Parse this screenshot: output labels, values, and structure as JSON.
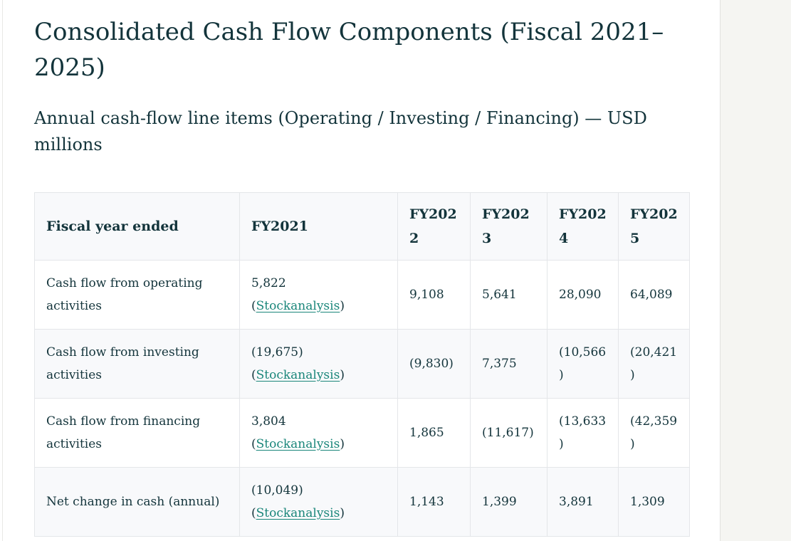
{
  "page": {
    "title": "Consolidated Cash Flow Components (Fiscal 2021–2025)",
    "subtitle": "Annual cash-flow line items (Operating / Investing / Financing) — USD millions"
  },
  "colors": {
    "text": "#13343b",
    "link_teal": "#1a867a",
    "table_border": "#e4e6e9",
    "stripe_bg": "#f8f9fb",
    "gutter_bg": "#f5f5f2"
  },
  "table": {
    "paren_open": "(",
    "paren_close": ")",
    "columns": [
      "Fiscal year ended",
      "FY2021",
      "FY2022",
      "FY2023",
      "FY2024",
      "FY2025"
    ],
    "rows": [
      {
        "label": "Cash flow from operating activities",
        "fy2021": {
          "value": "5,822",
          "source": "Stockanalysis"
        },
        "values": [
          "9,108",
          "5,641",
          "28,090",
          "64,089"
        ]
      },
      {
        "label": "Cash flow from investing activities",
        "fy2021": {
          "value": "(19,675)",
          "source": "Stockanalysis"
        },
        "values": [
          "(9,830)",
          "7,375",
          "(10,566)",
          "(20,421)"
        ]
      },
      {
        "label": "Cash flow from financing activities",
        "fy2021": {
          "value": "3,804",
          "source": "Stockanalysis"
        },
        "values": [
          "1,865",
          "(11,617)",
          "(13,633)",
          "(42,359)"
        ]
      },
      {
        "label": "Net change in cash (annual)",
        "fy2021": {
          "value": "(10,049)",
          "source": "Stockanalysis"
        },
        "values": [
          "1,143",
          "1,399",
          "3,891",
          "1,309"
        ]
      }
    ]
  }
}
